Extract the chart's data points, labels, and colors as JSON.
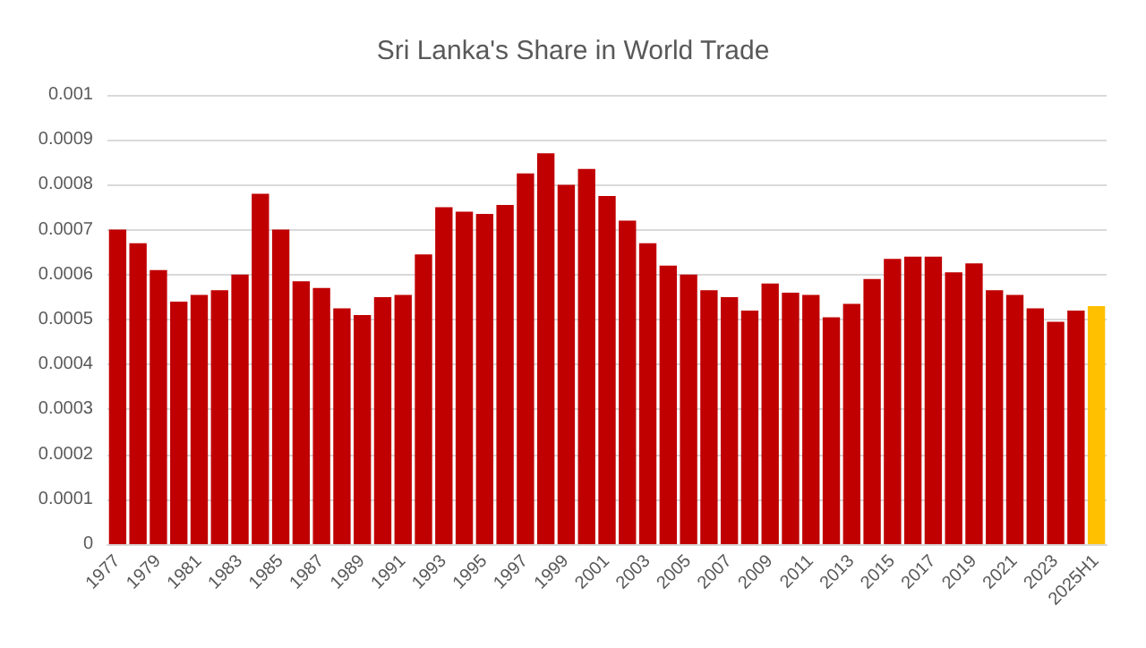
{
  "chart_data": {
    "type": "bar",
    "title": "Sri Lanka's Share in World Trade",
    "categories": [
      "1977",
      null,
      "1979",
      null,
      "1981",
      null,
      "1983",
      null,
      "1985",
      null,
      "1987",
      null,
      "1989",
      null,
      "1991",
      null,
      "1993",
      null,
      "1995",
      null,
      "1997",
      null,
      "1999",
      null,
      "2001",
      null,
      "2003",
      null,
      "2005",
      null,
      "2007",
      null,
      "2009",
      null,
      "2011",
      null,
      "2013",
      null,
      "2015",
      null,
      "2017",
      null,
      "2019",
      null,
      "2021",
      null,
      "2023",
      null,
      "2025H1"
    ],
    "values": [
      0.0007,
      0.00067,
      0.00061,
      0.00054,
      0.000555,
      0.000565,
      0.0006,
      0.00078,
      0.0007,
      0.000585,
      0.00057,
      0.000525,
      0.00051,
      0.00055,
      0.000555,
      0.000645,
      0.00075,
      0.00074,
      0.000735,
      0.000755,
      0.000825,
      0.00087,
      0.0008,
      0.000835,
      0.000775,
      0.00072,
      0.00067,
      0.00062,
      0.0006,
      0.000565,
      0.00055,
      0.00052,
      0.00058,
      0.00056,
      0.000555,
      0.000505,
      0.000535,
      0.00059,
      0.000635,
      0.00064,
      0.00064,
      0.000605,
      0.000625,
      0.000565,
      0.000555,
      0.000525,
      0.000495,
      0.00052,
      0.00053
    ],
    "colors": [
      "#c00000",
      "#c00000",
      "#c00000",
      "#c00000",
      "#c00000",
      "#c00000",
      "#c00000",
      "#c00000",
      "#c00000",
      "#c00000",
      "#c00000",
      "#c00000",
      "#c00000",
      "#c00000",
      "#c00000",
      "#c00000",
      "#c00000",
      "#c00000",
      "#c00000",
      "#c00000",
      "#c00000",
      "#c00000",
      "#c00000",
      "#c00000",
      "#c00000",
      "#c00000",
      "#c00000",
      "#c00000",
      "#c00000",
      "#c00000",
      "#c00000",
      "#c00000",
      "#c00000",
      "#c00000",
      "#c00000",
      "#c00000",
      "#c00000",
      "#c00000",
      "#c00000",
      "#c00000",
      "#c00000",
      "#c00000",
      "#c00000",
      "#c00000",
      "#c00000",
      "#c00000",
      "#c00000",
      "#c00000",
      "#ffc000"
    ],
    "ylim": [
      0,
      0.001
    ],
    "yticks": [
      0,
      0.0001,
      0.0002,
      0.0003,
      0.0004,
      0.0005,
      0.0006,
      0.0007,
      0.0008,
      0.0009,
      0.001
    ],
    "grid": "y"
  }
}
